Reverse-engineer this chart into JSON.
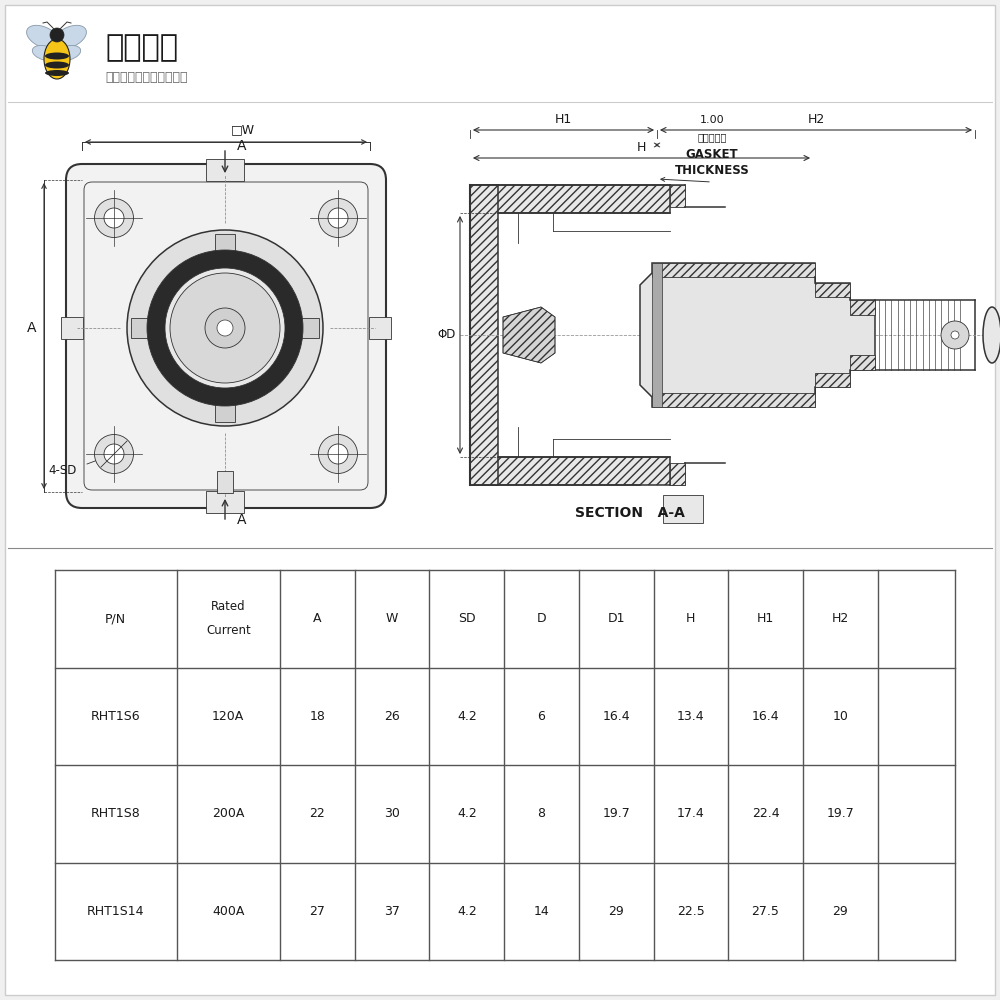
{
  "bg_color": "#f0f0f0",
  "white": "#ffffff",
  "black": "#1a1a1a",
  "line_color": "#333333",
  "logo_text1": "电蜂优选",
  "logo_text2": "原厂直采电子连接器商城",
  "section_label": "SECTION   A-A",
  "gasket_line1": "1.00",
  "gasket_line2": "密封层厚度",
  "gasket_line3": "GASKET",
  "gasket_line4": "THICKNESS",
  "table_headers": [
    "P/N",
    "Rated\nCurrent",
    "A",
    "W",
    "SD",
    "D",
    "D1",
    "H",
    "H1",
    "H2"
  ],
  "table_rows": [
    [
      "RHT1S6",
      "120A",
      "18",
      "26",
      "4.2",
      "6",
      "16.4",
      "13.4",
      "16.4",
      "10"
    ],
    [
      "RHT1S8",
      "200A",
      "22",
      "30",
      "4.2",
      "8",
      "19.7",
      "17.4",
      "22.4",
      "19.7"
    ],
    [
      "RHT1S14",
      "400A",
      "27",
      "37",
      "4.2",
      "14",
      "29",
      "22.5",
      "27.5",
      "29"
    ]
  ]
}
